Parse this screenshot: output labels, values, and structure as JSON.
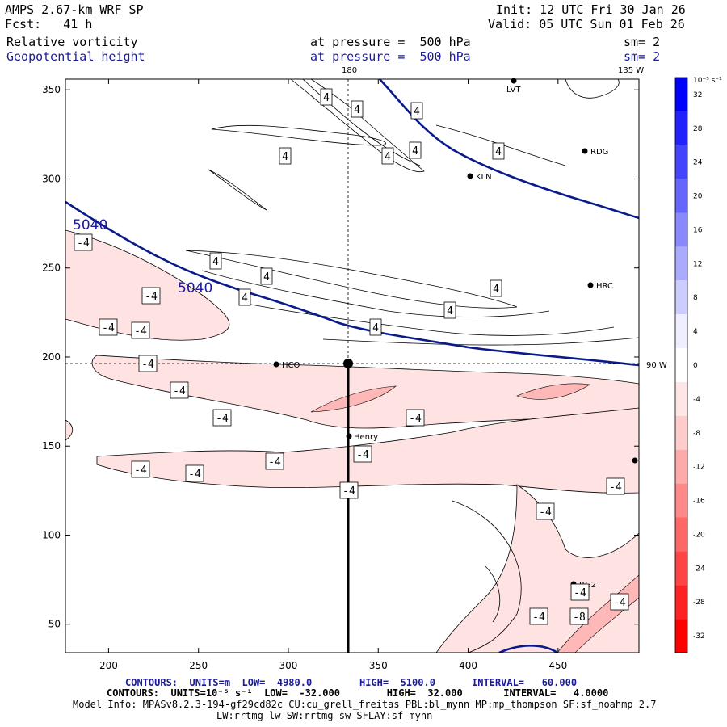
{
  "header": {
    "title": "AMPS 2.67-km WRF SP",
    "fcst": "Fcst:   41 h",
    "init": "Init: 12 UTC Fri 30 Jan 26",
    "valid": "Valid: 05 UTC Sun 01 Feb 26",
    "field1": "Relative vorticity",
    "field2": "Geopotential height",
    "level1": "at pressure =  500 hPa",
    "level2": "at pressure =  500 hPa",
    "smooth1": "sm= 2",
    "smooth2": "sm= 2"
  },
  "map_labels": {
    "lon_180": "180",
    "lon_135w": "135 W",
    "lon_90w": "90 W",
    "height_contour_1": "5040",
    "height_contour_2": "5040"
  },
  "colorbar": {
    "unit_label": "10⁻⁵ s⁻¹",
    "levels": [
      "32",
      "28",
      "24",
      "20",
      "16",
      "12",
      "8",
      "4",
      "0",
      "-4",
      "-8",
      "-12",
      "-16",
      "-20",
      "-24",
      "-28",
      "-32"
    ],
    "colors": [
      "#0000ff",
      "#2222ff",
      "#4444ff",
      "#6666ff",
      "#8888ff",
      "#aaaaff",
      "#ccccff",
      "#eeeeff",
      "#ffffff",
      "#ffe6e6",
      "#ffcccc",
      "#ffaaaa",
      "#ff8888",
      "#ff6666",
      "#ff4444",
      "#ff2222",
      "#ff0000"
    ]
  },
  "stations": [
    "LVT",
    "RDG",
    "KLN",
    "HRC",
    "HCO",
    "Henry",
    "RG2"
  ],
  "contour_labels": {
    "positive": "4",
    "negative": "-4",
    "negative_8": "-8"
  },
  "chart_data": {
    "type": "contour",
    "title": "AMPS 2.67-km WRF SP — Relative vorticity & Geopotential height at 500 hPa",
    "x_ticks": [
      200,
      250,
      300,
      350,
      400,
      450
    ],
    "y_ticks": [
      50,
      100,
      150,
      200,
      250,
      300,
      350
    ],
    "xlim": [
      176,
      495
    ],
    "ylim": [
      34,
      356
    ],
    "height_contour_m": 5040,
    "vorticity_interval": 4,
    "colors": {
      "height_line": "#0a1a8a",
      "axes": "#000000"
    }
  },
  "footer": {
    "line1_a": "CONTOURS:  UNITS=m  LOW=  4980.0",
    "line1_b": "HIGH=  5100.0",
    "line1_c": "INTERVAL=   60.000",
    "line2": "CONTOURS:  UNITS=10⁻⁵ s⁻¹  LOW=  -32.000        HIGH=  32.000       INTERVAL=   4.0000",
    "line3": "Model Info: MPASv8.2.3-194-gf29cd82c CU:cu_grell_freitas PBL:bl_mynn MP:mp_thompson SF:sf_noahmp 2.7",
    "line4": "LW:rrtmg_lw SW:rrtmg_sw SFLAY:sf_mynn"
  }
}
